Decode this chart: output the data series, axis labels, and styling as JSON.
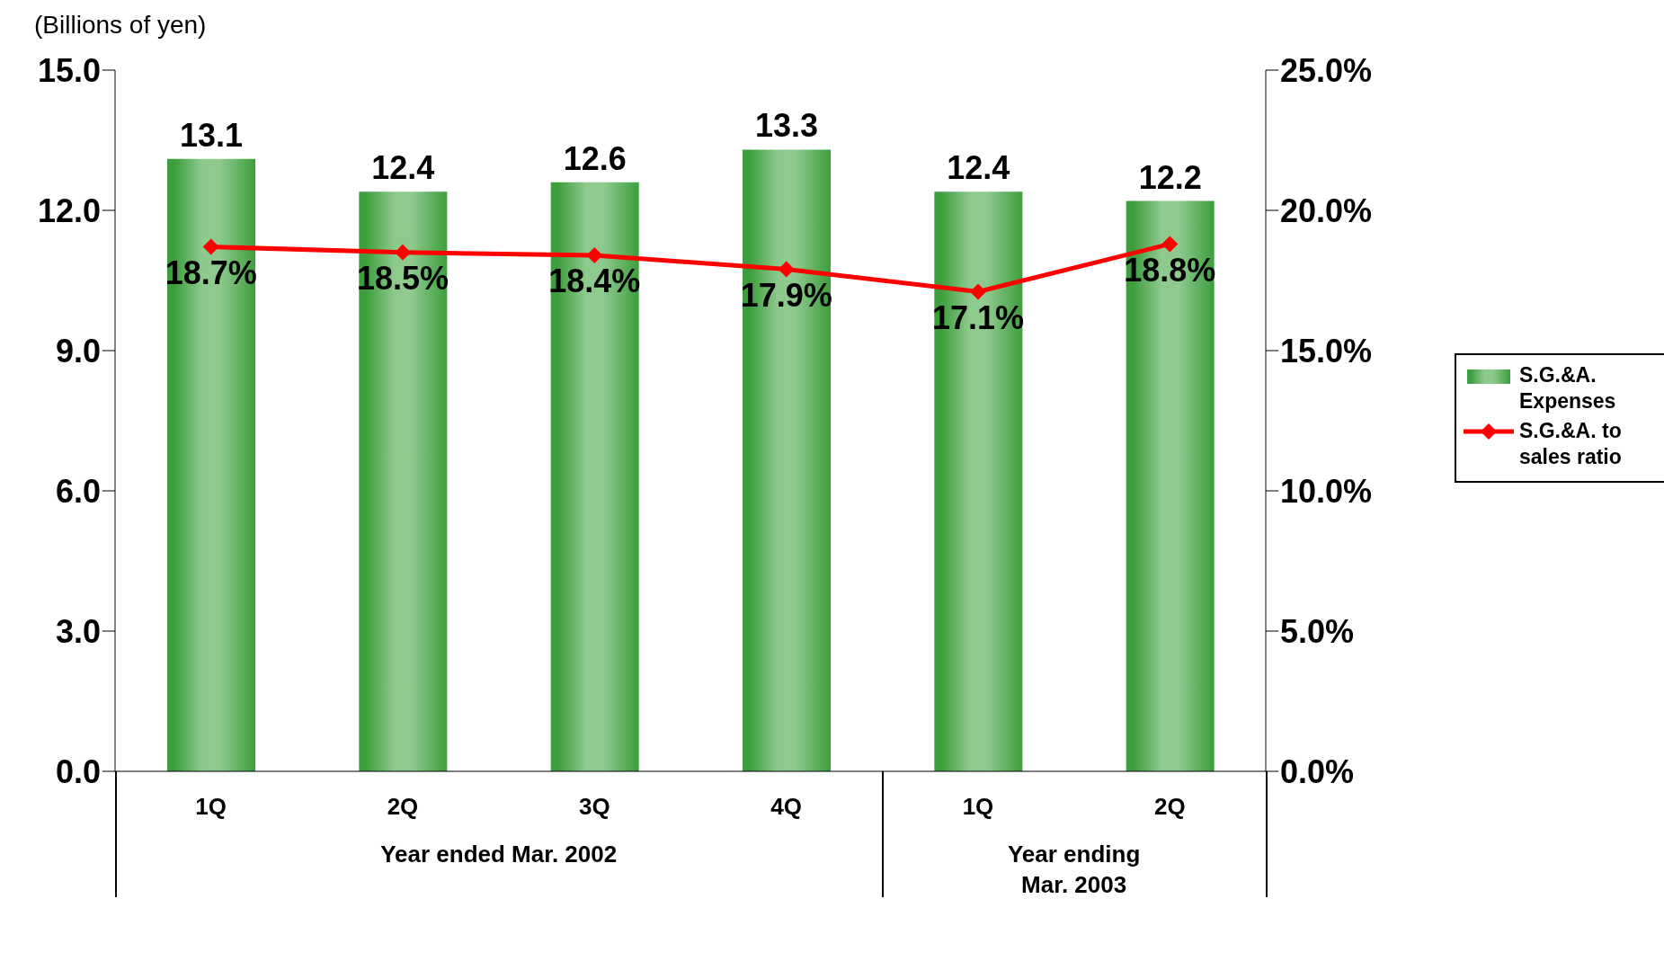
{
  "chart_data": {
    "type": "bar",
    "ylabel": "(Billions of yen)",
    "categories": [
      "1Q",
      "2Q",
      "3Q",
      "4Q",
      "1Q",
      "2Q"
    ],
    "series": [
      {
        "name": "S.G.&A. Expenses",
        "color": "#3d9e3d",
        "values": [
          13.1,
          12.4,
          12.6,
          13.3,
          12.4,
          12.2
        ]
      },
      {
        "name": "S.G.&A. to sales ratio",
        "type": "line",
        "axis": "y2",
        "color": "#ff0000",
        "marker": "diamond",
        "values": [
          18.7,
          18.5,
          18.4,
          17.9,
          17.1,
          18.8
        ],
        "value_labels": [
          "18.7%",
          "18.5%",
          "18.4%",
          "17.9%",
          "17.1%",
          "18.8%"
        ]
      }
    ],
    "data_labels": true,
    "ylim": [
      0,
      15
    ],
    "yticks": [
      {
        "value": 0,
        "label": "0.0"
      },
      {
        "value": 3,
        "label": "3.0"
      },
      {
        "value": 6,
        "label": "6.0"
      },
      {
        "value": 9,
        "label": "9.0"
      },
      {
        "value": 12,
        "label": "12.0"
      },
      {
        "value": 15,
        "label": "15.0"
      }
    ],
    "y2lim": [
      0,
      25
    ],
    "y2ticks": [
      {
        "value": 0,
        "label": "0.0%"
      },
      {
        "value": 5,
        "label": "5.0%"
      },
      {
        "value": 10,
        "label": "10.0%"
      },
      {
        "value": 15,
        "label": "15.0%"
      },
      {
        "value": 20,
        "label": "20.0%"
      },
      {
        "value": 25,
        "label": "25.0%"
      }
    ],
    "annotations": [
      "Year ended Mar. 2002",
      "Year ending\nMar. 2003"
    ],
    "grid": false,
    "legend": "right"
  }
}
